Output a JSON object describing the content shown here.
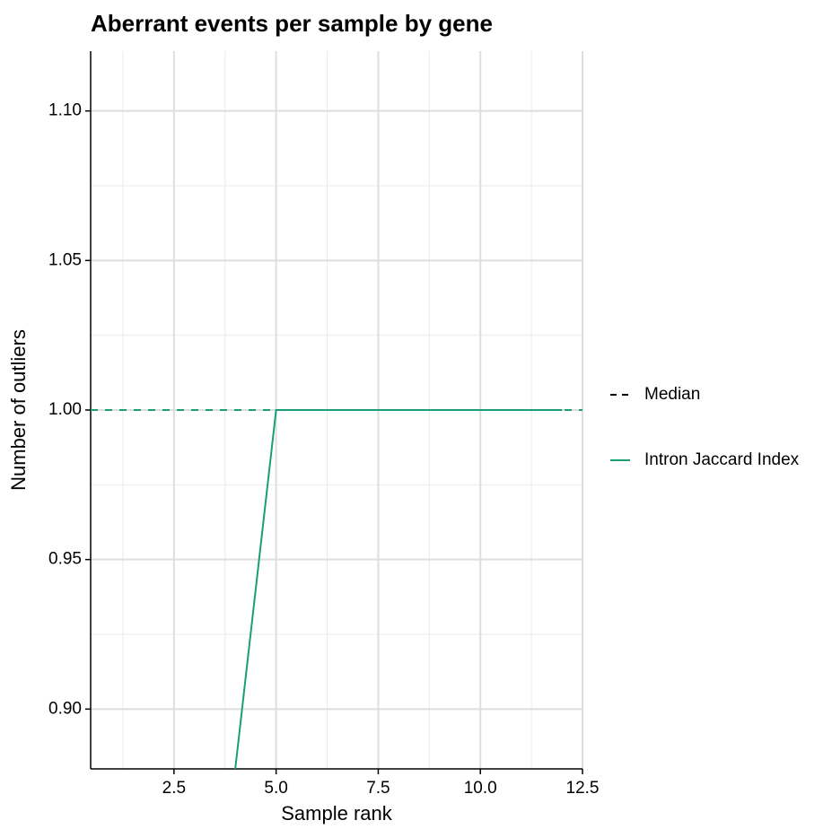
{
  "chart_data": {
    "type": "line",
    "title": "Aberrant events per sample by gene",
    "x_label": "Sample rank",
    "y_label": "Number of outliers",
    "x": [
      4,
      5,
      6,
      7,
      8,
      9,
      10,
      11,
      12
    ],
    "series": [
      {
        "name": "Intron Jaccard Index",
        "color": "#1b9e77",
        "values": [
          0.88,
          1,
          1,
          1,
          1,
          1,
          1,
          1,
          1
        ]
      }
    ],
    "hlines": [
      {
        "name": "Median",
        "value": 1,
        "color": "#1b9e77",
        "legend_color": "#000000"
      }
    ],
    "xlim": [
      0.46,
      12.5
    ],
    "ylim": [
      0.88,
      1.12
    ],
    "xticks": [
      2.5,
      {
        "value": 5,
        "label": "5.0"
      },
      7.5,
      {
        "value": 10,
        "label": "10.0"
      },
      12.5
    ],
    "yticks": [
      {
        "value": 0.9,
        "label": "0.90"
      },
      0.95,
      {
        "value": 1,
        "label": "1.00"
      },
      1.05,
      {
        "value": 1.1,
        "label": "1.10"
      }
    ],
    "x_minor_grid": [
      1.25,
      3.75,
      6.25,
      8.75,
      11.25
    ],
    "y_minor_grid": [
      0.925,
      0.975,
      1.025,
      1.075
    ],
    "grid": true
  }
}
